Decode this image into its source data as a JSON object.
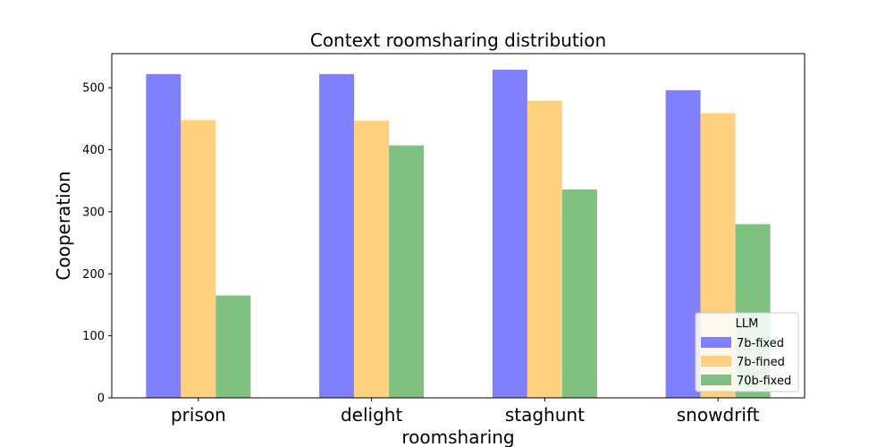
{
  "chart_data": {
    "type": "bar",
    "title": "Context roomsharing distribution",
    "xlabel": "roomsharing",
    "ylabel": "Cooperation",
    "categories": [
      "prison",
      "delight",
      "staghunt",
      "snowdrift"
    ],
    "ylim": [
      0,
      555
    ],
    "yticks": [
      0,
      100,
      200,
      300,
      400,
      500
    ],
    "grid": false,
    "legend": {
      "title": "LLM",
      "position": "lower-right"
    },
    "series": [
      {
        "name": "7b-fixed",
        "color": "#8080ff",
        "values": [
          522,
          522,
          529,
          496
        ]
      },
      {
        "name": "7b-fined",
        "color": "#ffd080",
        "values": [
          448,
          447,
          479,
          459
        ]
      },
      {
        "name": "70b-fixed",
        "color": "#80c080",
        "values": [
          165,
          407,
          336,
          280
        ]
      }
    ]
  }
}
